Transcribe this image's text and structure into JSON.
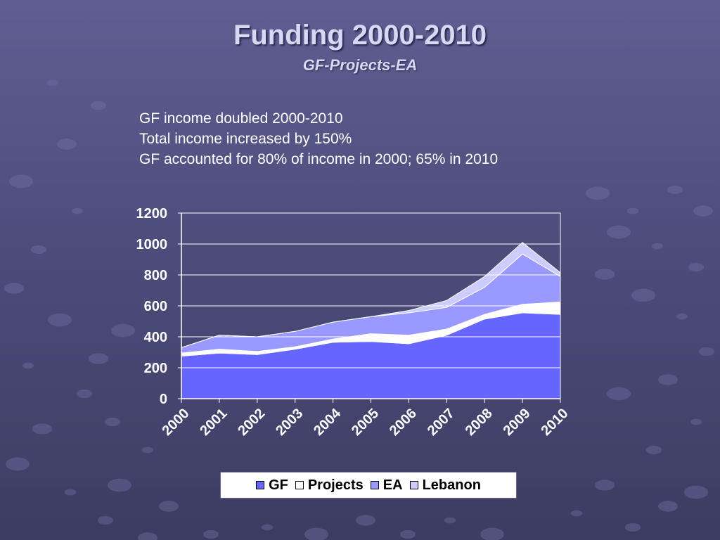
{
  "slide": {
    "title": "Funding 2000-2010",
    "subtitle": "GF-Projects-EA",
    "notes": [
      "GF income doubled 2000-2010",
      "Total income increased by 150%",
      "GF accounted for 80% of income in 2000; 65% in 2010"
    ]
  },
  "chart_data": {
    "type": "area",
    "stacked": true,
    "categories": [
      "2000",
      "2001",
      "2002",
      "2003",
      "2004",
      "2005",
      "2006",
      "2007",
      "2008",
      "2009",
      "2010"
    ],
    "series": [
      {
        "name": "GF",
        "color": "#6666ff",
        "values": [
          275,
          295,
          285,
          320,
          365,
          370,
          355,
          410,
          515,
          555,
          545
        ]
      },
      {
        "name": "Projects",
        "color": "#ffffff",
        "values": [
          20,
          25,
          20,
          15,
          20,
          50,
          55,
          40,
          30,
          55,
          80
        ]
      },
      {
        "name": "EA",
        "color": "#9999ff",
        "values": [
          35,
          90,
          95,
          100,
          110,
          110,
          145,
          140,
          175,
          325,
          165
        ]
      },
      {
        "name": "Lebanon",
        "color": "#ccccff",
        "values": [
          0,
          0,
          0,
          0,
          0,
          0,
          15,
          45,
          70,
          75,
          25
        ]
      }
    ],
    "ylim": [
      0,
      1200
    ],
    "yticks": [
      0,
      200,
      400,
      600,
      800,
      1000,
      1200
    ],
    "grid": true,
    "legend_position": "bottom",
    "legend_labels": [
      "GF",
      "Projects",
      "EA",
      "Lebanon"
    ]
  }
}
